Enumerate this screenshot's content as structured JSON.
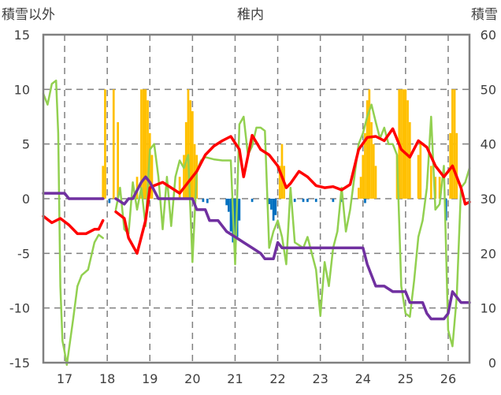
{
  "chart_data": {
    "type": "line",
    "title": "稚内",
    "left_axis_title": "積雪以外",
    "right_axis_title": "積雪",
    "left_ylim": [
      -15,
      15
    ],
    "left_yticks": [
      15,
      10,
      5,
      0,
      -5,
      -10,
      -15
    ],
    "right_ylim": [
      0,
      60
    ],
    "right_yticks": [
      60,
      50,
      40,
      30,
      20,
      10,
      0
    ],
    "xlim": [
      16.5,
      26.5
    ],
    "xticks": [
      17,
      18,
      19,
      20,
      21,
      22,
      23,
      24,
      25,
      26
    ],
    "grid": true,
    "colors": {
      "red": "#ff0000",
      "green": "#92d050",
      "purple": "#7030a0",
      "bar_pos": "#ffc000",
      "bar_neg": "#0070c0",
      "axis": "#808080",
      "grid": "#808080"
    },
    "series": [
      {
        "color": "#ff0000",
        "axis": "left",
        "segments": [
          [
            [
              16.5,
              -1.6
            ],
            [
              16.7,
              -2.2
            ],
            [
              16.9,
              -1.8
            ],
            [
              17.1,
              -2.4
            ],
            [
              17.3,
              -3.2
            ],
            [
              17.5,
              -3.2
            ],
            [
              17.7,
              -2.8
            ],
            [
              17.8,
              -2.8
            ],
            [
              17.9,
              -2.0
            ]
          ],
          [
            [
              18.2,
              -1.2
            ],
            [
              18.4,
              -1.8
            ],
            [
              18.5,
              -3.6
            ],
            [
              18.7,
              -5.0
            ],
            [
              18.8,
              -3.5
            ],
            [
              18.9,
              -2.0
            ],
            [
              19.0,
              1.0
            ],
            [
              19.1,
              1.2
            ],
            [
              19.3,
              1.5
            ],
            [
              19.5,
              1.0
            ],
            [
              19.7,
              0.5
            ],
            [
              19.9,
              1.5
            ],
            [
              20.1,
              2.5
            ],
            [
              20.3,
              4.0
            ],
            [
              20.5,
              4.8
            ],
            [
              20.7,
              5.3
            ],
            [
              20.9,
              5.7
            ],
            [
              21.1,
              4.5
            ],
            [
              21.2,
              2.0
            ],
            [
              21.4,
              5.8
            ],
            [
              21.6,
              4.5
            ],
            [
              21.8,
              4.0
            ],
            [
              22.0,
              3.0
            ],
            [
              22.2,
              1.0
            ],
            [
              22.3,
              1.4
            ],
            [
              22.5,
              2.5
            ],
            [
              22.7,
              2.0
            ],
            [
              22.9,
              1.2
            ],
            [
              23.1,
              1.0
            ],
            [
              23.3,
              1.1
            ],
            [
              23.5,
              0.8
            ],
            [
              23.7,
              1.3
            ],
            [
              23.9,
              4.5
            ],
            [
              24.1,
              5.6
            ],
            [
              24.3,
              5.7
            ],
            [
              24.5,
              5.3
            ],
            [
              24.7,
              6.4
            ],
            [
              24.9,
              4.5
            ],
            [
              25.1,
              3.8
            ],
            [
              25.3,
              5.3
            ],
            [
              25.5,
              4.7
            ],
            [
              25.7,
              3.0
            ],
            [
              25.9,
              2.0
            ],
            [
              26.1,
              3.0
            ],
            [
              26.3,
              1.0
            ],
            [
              26.4,
              -0.5
            ],
            [
              26.5,
              -0.3
            ]
          ]
        ]
      },
      {
        "color": "#92d050",
        "axis": "left",
        "segments": [
          [
            [
              16.5,
              9.6
            ],
            [
              16.6,
              8.6
            ],
            [
              16.7,
              10.5
            ],
            [
              16.8,
              10.8
            ],
            [
              16.85,
              6.0
            ],
            [
              16.9,
              -8.0
            ],
            [
              16.95,
              -13.0
            ],
            [
              17.0,
              -14.0
            ],
            [
              17.05,
              -15.2
            ],
            [
              17.2,
              -11.0
            ],
            [
              17.3,
              -8.0
            ],
            [
              17.4,
              -7.0
            ],
            [
              17.55,
              -6.5
            ],
            [
              17.7,
              -4.0
            ],
            [
              17.8,
              -3.3
            ],
            [
              17.9,
              -3.6
            ]
          ],
          [
            [
              18.2,
              -1.0
            ],
            [
              18.3,
              1.0
            ],
            [
              18.4,
              -2.8
            ],
            [
              18.5,
              -3.2
            ],
            [
              18.6,
              1.5
            ],
            [
              18.7,
              -1.0
            ],
            [
              18.8,
              1.0
            ],
            [
              18.9,
              -2.5
            ],
            [
              19.0,
              4.5
            ],
            [
              19.1,
              5.0
            ],
            [
              19.2,
              2.0
            ],
            [
              19.3,
              -2.8
            ],
            [
              19.4,
              2.0
            ],
            [
              19.5,
              -2.5
            ],
            [
              19.6,
              2.0
            ],
            [
              19.7,
              3.5
            ],
            [
              19.8,
              2.8
            ],
            [
              19.9,
              4.0
            ],
            [
              20.0,
              -5.8
            ],
            [
              20.1,
              2.5
            ],
            [
              20.2,
              3.5
            ],
            [
              20.3,
              3.8
            ],
            [
              20.5,
              3.6
            ],
            [
              20.7,
              3.5
            ],
            [
              20.9,
              3.5
            ],
            [
              21.0,
              -6.0
            ],
            [
              21.1,
              6.8
            ],
            [
              21.2,
              7.5
            ],
            [
              21.3,
              4.0
            ],
            [
              21.4,
              4.8
            ],
            [
              21.5,
              6.5
            ],
            [
              21.6,
              6.5
            ],
            [
              21.7,
              6.2
            ],
            [
              21.8,
              -4.5
            ],
            [
              21.9,
              -3.0
            ],
            [
              22.0,
              -2.0
            ],
            [
              22.1,
              -3.5
            ],
            [
              22.2,
              -6.0
            ],
            [
              22.3,
              1.0
            ],
            [
              22.4,
              -4.0
            ],
            [
              22.6,
              -4.5
            ],
            [
              22.7,
              -3.5
            ],
            [
              22.9,
              -6.5
            ],
            [
              23.0,
              -10.7
            ],
            [
              23.1,
              -5.8
            ],
            [
              23.2,
              -8.0
            ],
            [
              23.3,
              -4.5
            ],
            [
              23.4,
              -3.0
            ],
            [
              23.5,
              1.0
            ],
            [
              23.6,
              -3.0
            ],
            [
              23.7,
              -1.0
            ],
            [
              23.9,
              5.0
            ],
            [
              24.0,
              6.0
            ],
            [
              24.1,
              7.5
            ],
            [
              24.2,
              8.6
            ],
            [
              24.3,
              7.0
            ],
            [
              24.4,
              5.5
            ],
            [
              24.5,
              6.5
            ],
            [
              24.6,
              5.0
            ],
            [
              24.7,
              5.0
            ],
            [
              24.8,
              4.0
            ],
            [
              24.9,
              -8.0
            ],
            [
              25.0,
              -10.5
            ],
            [
              25.1,
              -10.8
            ],
            [
              25.2,
              -7.5
            ],
            [
              25.3,
              -3.5
            ],
            [
              25.4,
              -2.0
            ],
            [
              25.5,
              1.0
            ],
            [
              25.6,
              7.5
            ],
            [
              25.7,
              -1.0
            ],
            [
              25.8,
              -0.5
            ],
            [
              25.9,
              3.0
            ],
            [
              26.0,
              -12.0
            ],
            [
              26.1,
              -13.5
            ],
            [
              26.2,
              -9.0
            ],
            [
              26.3,
              1.0
            ],
            [
              26.4,
              1.5
            ],
            [
              26.5,
              2.8
            ]
          ]
        ]
      },
      {
        "color": "#7030a0",
        "axis": "right",
        "segments": [
          [
            [
              16.5,
              31
            ],
            [
              17.0,
              31
            ],
            [
              17.1,
              30
            ],
            [
              17.9,
              30
            ]
          ],
          [
            [
              18.2,
              30
            ],
            [
              18.4,
              29
            ],
            [
              18.5,
              30
            ],
            [
              18.6,
              30
            ],
            [
              18.8,
              33
            ],
            [
              18.9,
              34
            ],
            [
              19.0,
              33
            ],
            [
              19.2,
              30
            ],
            [
              19.4,
              30
            ],
            [
              20.0,
              30
            ],
            [
              20.1,
              28
            ],
            [
              20.3,
              28
            ],
            [
              20.4,
              26
            ],
            [
              20.6,
              26
            ],
            [
              20.8,
              24
            ],
            [
              21.0,
              23
            ],
            [
              21.2,
              22
            ],
            [
              21.4,
              21
            ],
            [
              21.6,
              20
            ],
            [
              21.7,
              19
            ],
            [
              21.9,
              19
            ],
            [
              22.0,
              22
            ],
            [
              22.1,
              21
            ],
            [
              22.5,
              21
            ],
            [
              22.8,
              21
            ],
            [
              23.0,
              21
            ],
            [
              24.0,
              21
            ],
            [
              24.1,
              18
            ],
            [
              24.2,
              16
            ],
            [
              24.3,
              14
            ],
            [
              24.5,
              14
            ],
            [
              24.7,
              13
            ],
            [
              25.0,
              13
            ],
            [
              25.1,
              11
            ],
            [
              25.4,
              11
            ],
            [
              25.5,
              9
            ],
            [
              25.6,
              8
            ],
            [
              25.9,
              8
            ],
            [
              26.0,
              9
            ],
            [
              26.1,
              13
            ],
            [
              26.2,
              12
            ],
            [
              26.3,
              11
            ],
            [
              26.5,
              11
            ]
          ]
        ]
      }
    ],
    "bars": [
      {
        "x": 17.9,
        "v": 3
      },
      {
        "x": 17.95,
        "v": 10
      },
      {
        "x": 18.05,
        "v": -0.4
      },
      {
        "x": 18.15,
        "v": 10
      },
      {
        "x": 18.25,
        "v": 7
      },
      {
        "x": 18.7,
        "v": 2
      },
      {
        "x": 18.8,
        "v": 10
      },
      {
        "x": 18.85,
        "v": 10
      },
      {
        "x": 18.9,
        "v": 10
      },
      {
        "x": 18.95,
        "v": 9
      },
      {
        "x": 19.0,
        "v": 6
      },
      {
        "x": 19.05,
        "v": 4
      },
      {
        "x": 19.7,
        "v": 2
      },
      {
        "x": 19.8,
        "v": 4
      },
      {
        "x": 19.85,
        "v": 7
      },
      {
        "x": 19.9,
        "v": 10
      },
      {
        "x": 19.95,
        "v": 9
      },
      {
        "x": 20.0,
        "v": 8
      },
      {
        "x": 20.05,
        "v": 5
      },
      {
        "x": 20.1,
        "v": 4
      },
      {
        "x": 20.25,
        "v": -0.3
      },
      {
        "x": 20.35,
        "v": -0.4
      },
      {
        "x": 20.8,
        "v": -0.6
      },
      {
        "x": 20.85,
        "v": -1.2
      },
      {
        "x": 20.9,
        "v": -3.0
      },
      {
        "x": 20.95,
        "v": -4.0
      },
      {
        "x": 21.0,
        "v": -5.5
      },
      {
        "x": 21.05,
        "v": -3.5
      },
      {
        "x": 21.1,
        "v": -2.0
      },
      {
        "x": 21.4,
        "v": -0.3
      },
      {
        "x": 21.8,
        "v": -0.5
      },
      {
        "x": 21.85,
        "v": -1.0
      },
      {
        "x": 21.9,
        "v": -2.0
      },
      {
        "x": 21.95,
        "v": -1.5
      },
      {
        "x": 22.05,
        "v": 3
      },
      {
        "x": 22.1,
        "v": 5
      },
      {
        "x": 22.15,
        "v": 3
      },
      {
        "x": 22.4,
        "v": -0.3
      },
      {
        "x": 22.6,
        "v": -0.3
      },
      {
        "x": 22.7,
        "v": -0.3
      },
      {
        "x": 22.9,
        "v": -0.3
      },
      {
        "x": 23.3,
        "v": -0.3
      },
      {
        "x": 23.5,
        "v": -0.3
      },
      {
        "x": 23.9,
        "v": 1
      },
      {
        "x": 23.95,
        "v": 2
      },
      {
        "x": 24.0,
        "v": 4
      },
      {
        "x": 24.05,
        "v": 6
      },
      {
        "x": 24.1,
        "v": 9
      },
      {
        "x": 24.15,
        "v": 10
      },
      {
        "x": 24.2,
        "v": 7
      },
      {
        "x": 24.25,
        "v": 5
      },
      {
        "x": 24.3,
        "v": 3
      },
      {
        "x": 24.05,
        "v": -0.4
      },
      {
        "x": 24.8,
        "v": 4
      },
      {
        "x": 24.85,
        "v": 10
      },
      {
        "x": 24.9,
        "v": 10
      },
      {
        "x": 24.95,
        "v": 10
      },
      {
        "x": 25.0,
        "v": 10
      },
      {
        "x": 25.05,
        "v": 9
      },
      {
        "x": 25.1,
        "v": 7
      },
      {
        "x": 25.3,
        "v": 4
      },
      {
        "x": 25.35,
        "v": 5
      },
      {
        "x": 25.6,
        "v": 3
      },
      {
        "x": 25.7,
        "v": 2
      },
      {
        "x": 25.8,
        "v": 2
      },
      {
        "x": 25.95,
        "v": -2.0
      },
      {
        "x": 26.05,
        "v": 6
      },
      {
        "x": 26.1,
        "v": 10
      },
      {
        "x": 26.15,
        "v": 10
      },
      {
        "x": 26.2,
        "v": 6
      }
    ]
  }
}
